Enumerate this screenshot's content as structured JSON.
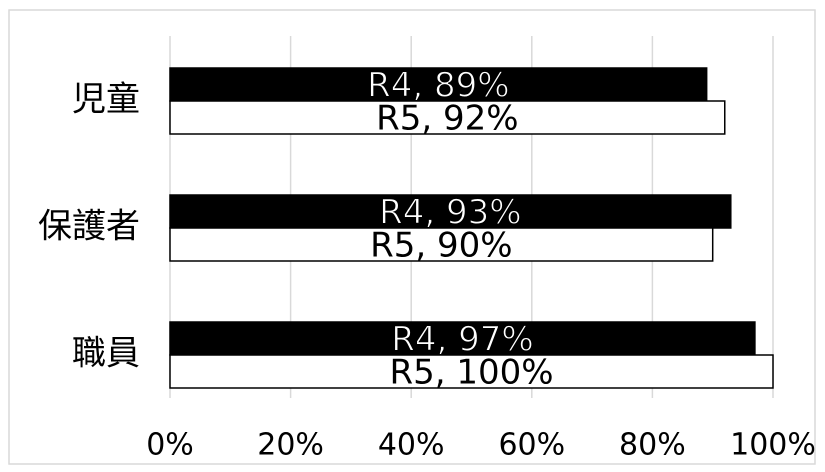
{
  "chart_data": {
    "type": "bar",
    "orientation": "horizontal",
    "categories": [
      "児童",
      "保護者",
      "職員"
    ],
    "series": [
      {
        "name": "R4",
        "color": "#000000",
        "values": [
          89,
          93,
          97
        ],
        "value_labels": [
          "R4, 89%",
          "R4, 93%",
          "R4, 97%"
        ]
      },
      {
        "name": "R5",
        "color": "#ffffff",
        "values": [
          92,
          90,
          100
        ],
        "value_labels": [
          "R5, 92%",
          "R5, 90%",
          "R5, 100%"
        ]
      }
    ],
    "xlim": [
      0,
      100
    ],
    "xticks": [
      {
        "value": 0,
        "label": "0%"
      },
      {
        "value": 20,
        "label": "20%"
      },
      {
        "value": 40,
        "label": "40%"
      },
      {
        "value": 60,
        "label": "60%"
      },
      {
        "value": 80,
        "label": "80%"
      },
      {
        "value": 100,
        "label": "100%"
      }
    ],
    "grid": true
  }
}
